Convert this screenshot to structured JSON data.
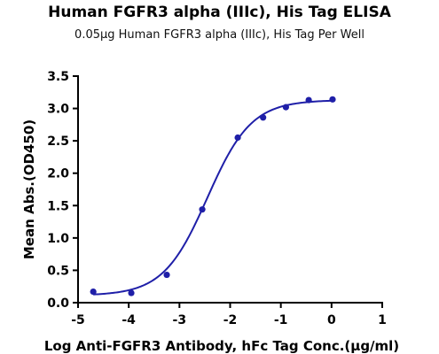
{
  "chart_data": {
    "type": "scatter",
    "title": "Human FGFR3 alpha (IIIc), His Tag ELISA",
    "subtitle": "0.05µg Human FGFR3 alpha (IIIc), His Tag Per Well",
    "xlabel": "Log  Anti-FGFR3 Antibody, hFc Tag Conc.(µg/ml)",
    "ylabel": "Mean Abs.(OD450)",
    "xlim": [
      -5,
      1
    ],
    "ylim": [
      0,
      3.5
    ],
    "xticks": [
      "-5",
      "-4",
      "-3",
      "-2",
      "-1",
      "0",
      "1"
    ],
    "yticks": [
      "0.0",
      "0.5",
      "1.0",
      "1.5",
      "2.0",
      "2.5",
      "3.0",
      "3.5"
    ],
    "grid": false,
    "series": [
      {
        "x": [
          -4.7,
          -3.95,
          -3.25,
          -2.55,
          -1.85,
          -1.35,
          -0.9,
          -0.45,
          0.02
        ],
        "y": [
          0.17,
          0.15,
          0.43,
          1.44,
          2.55,
          2.86,
          3.02,
          3.13,
          3.14
        ],
        "color": "#1f1fa8"
      }
    ],
    "fit_curve": {
      "model": "4PL",
      "bottom": 0.11,
      "top": 3.13,
      "logEC50": -2.45,
      "hill": 1.0,
      "color": "#1f1fa8"
    }
  }
}
